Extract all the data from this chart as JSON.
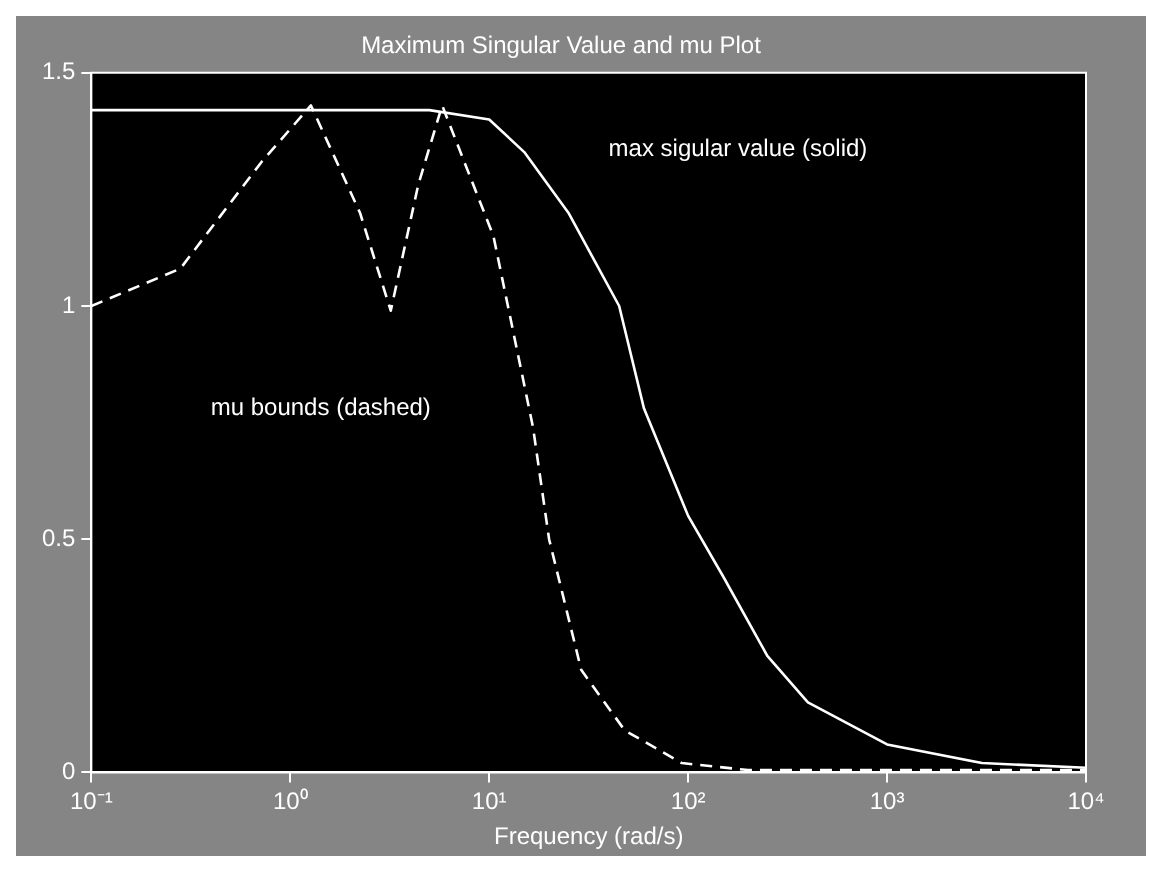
{
  "chart_data": {
    "type": "line",
    "title": "Maximum Singular Value and mu Plot",
    "xlabel": "Frequency (rad/s)",
    "annotations": [
      "max sigular value (solid)",
      "mu bounds (dashed)"
    ],
    "log": "x",
    "xlim": [
      0.1,
      10000
    ],
    "ylim": [
      0,
      1.5
    ],
    "xticks": [
      {
        "value": 0.1,
        "label": "10⁻¹"
      },
      {
        "value": 1,
        "label": "10⁰"
      },
      {
        "value": 10,
        "label": "10¹"
      },
      {
        "value": 100,
        "label": "10²"
      },
      {
        "value": 1000,
        "label": "10³"
      },
      {
        "value": 10000,
        "label": "10⁴"
      }
    ],
    "yticks": [
      0,
      0.5,
      1,
      1.5
    ],
    "grid": false,
    "legend": false,
    "marker": "none",
    "series": [
      {
        "color": "#ffffff",
        "line_style": "solid",
        "x": [
          0.1,
          1,
          5,
          10,
          15,
          25,
          45,
          60,
          100,
          150,
          250,
          400,
          1000,
          3000,
          10000
        ],
        "values": [
          1.42,
          1.42,
          1.42,
          1.4,
          1.33,
          1.2,
          1.0,
          0.78,
          0.55,
          0.42,
          0.25,
          0.15,
          0.06,
          0.02,
          0.01
        ]
      },
      {
        "color": "#ffffff",
        "line_style": "dashed",
        "x": [
          0.1,
          0.28,
          0.72,
          1.27,
          2.24,
          3.2,
          4.4,
          5.8,
          10.5,
          16.6,
          20,
          29,
          48,
          93,
          200,
          10000
        ],
        "values": [
          1.0,
          1.08,
          1.31,
          1.43,
          1.2,
          0.99,
          1.26,
          1.43,
          1.15,
          0.74,
          0.5,
          0.22,
          0.09,
          0.02,
          0.005,
          0.005
        ]
      }
    ]
  }
}
